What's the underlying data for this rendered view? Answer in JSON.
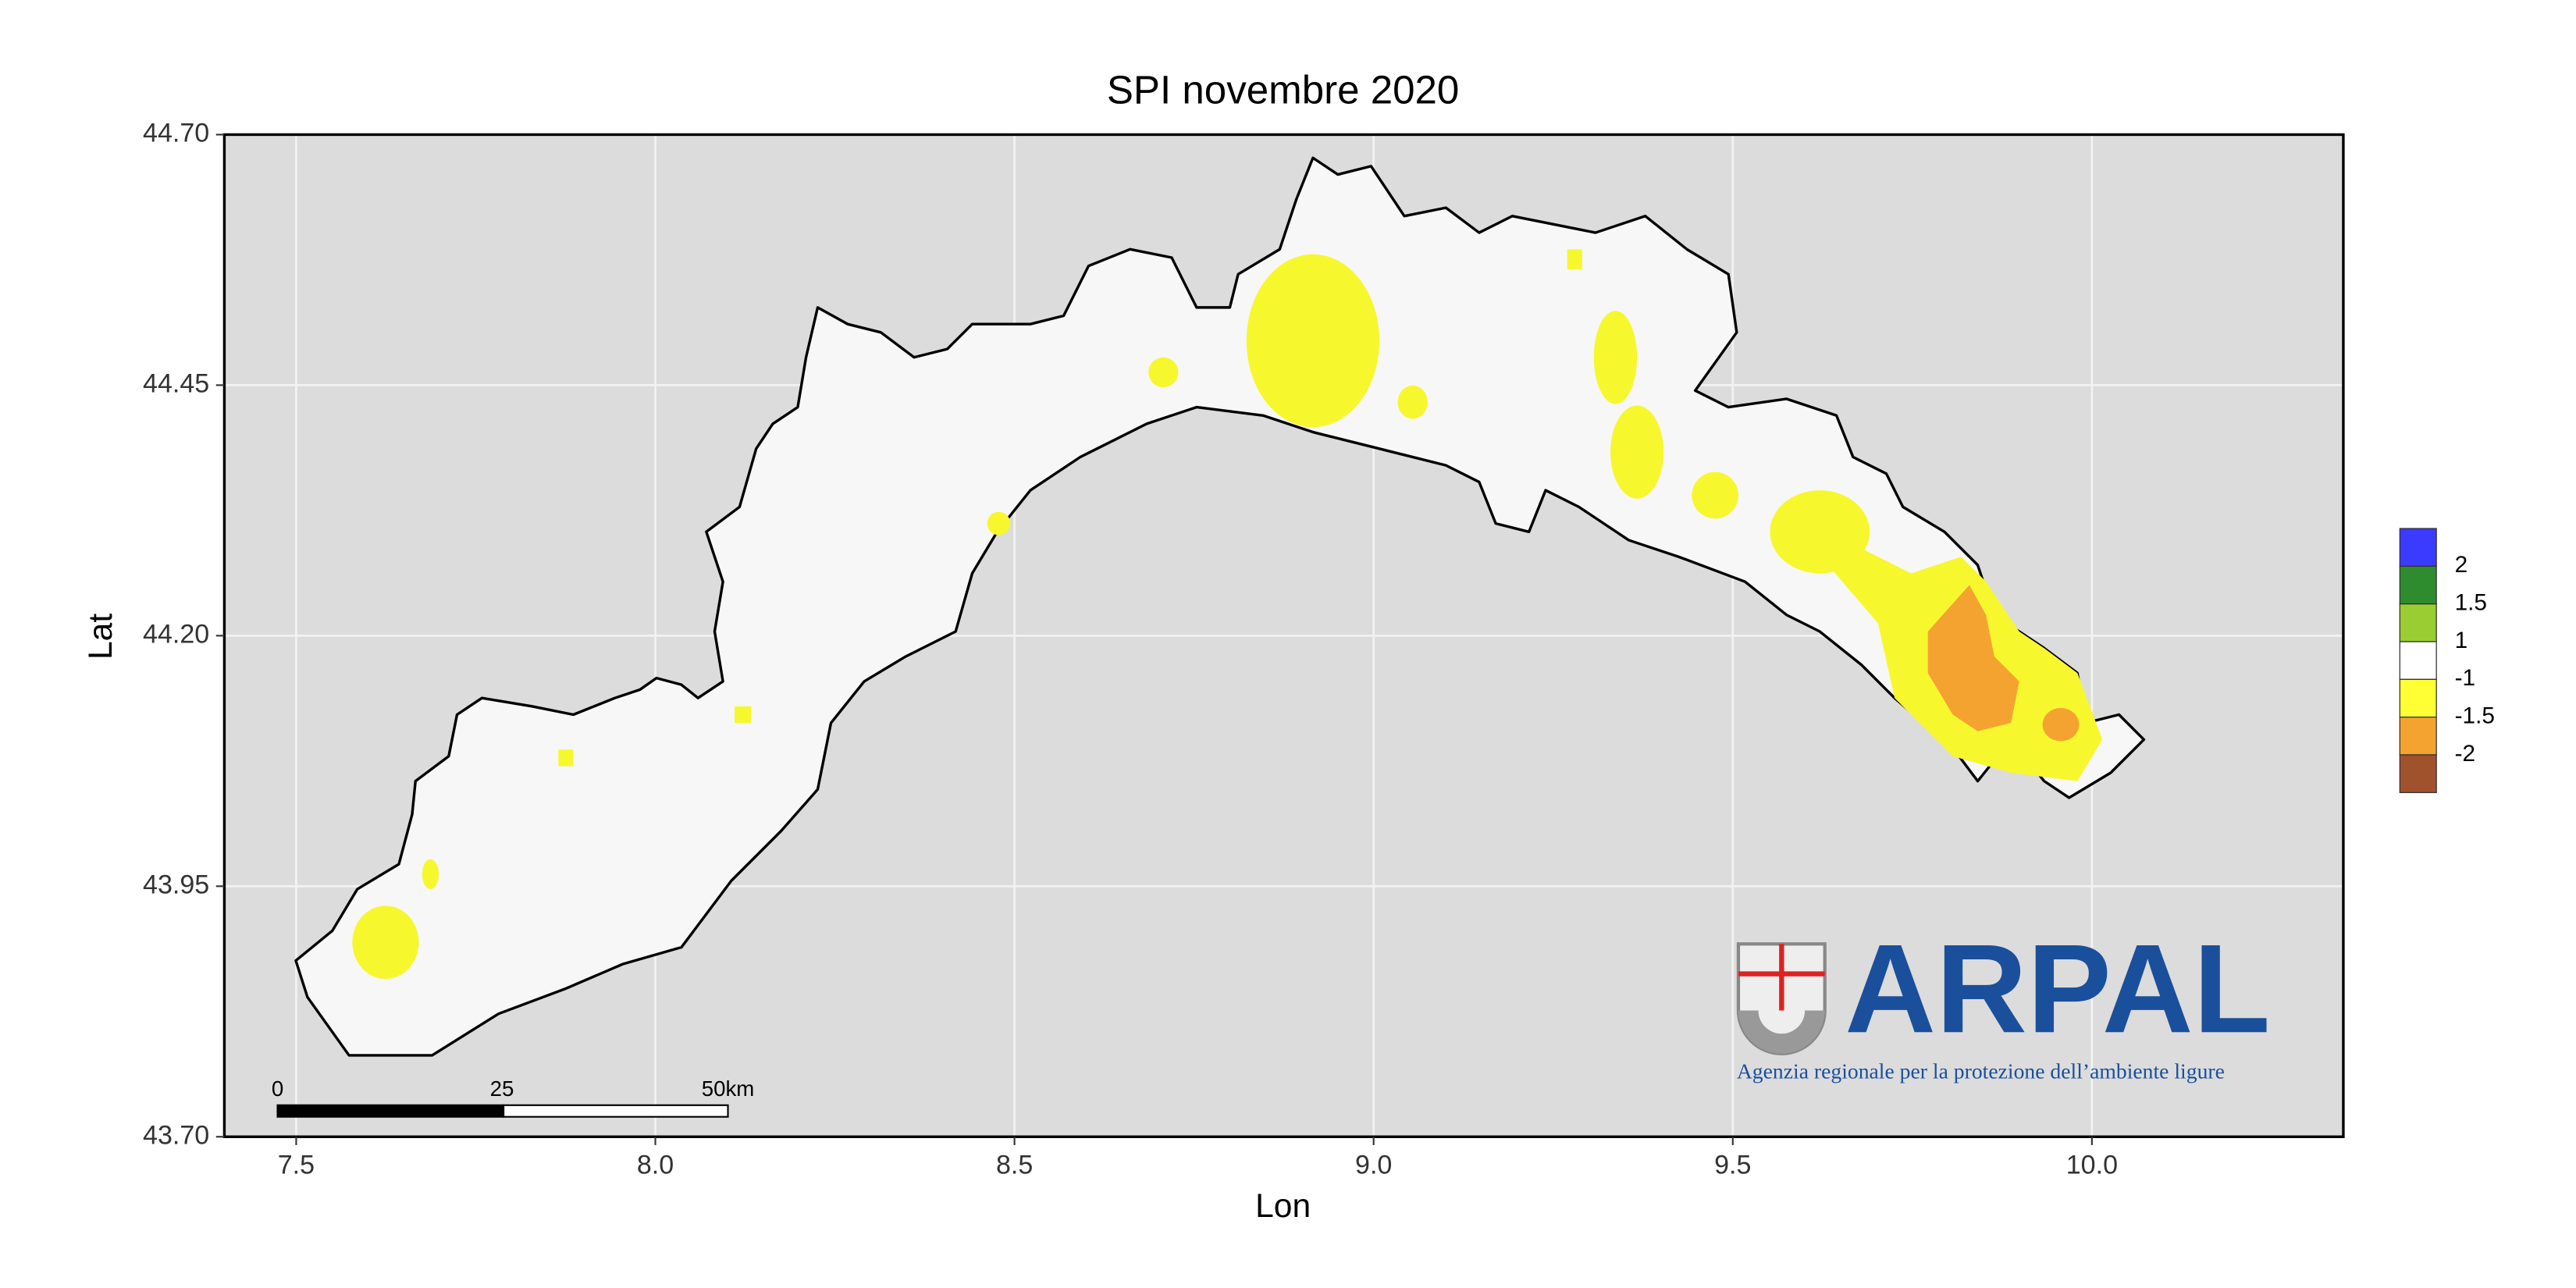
{
  "chart_data": {
    "type": "map",
    "title": "SPI novembre 2020",
    "x_label": "Lon",
    "y_label": "Lat",
    "xlim": [
      7.4,
      10.35
    ],
    "ylim": [
      43.7,
      44.7
    ],
    "xticks": [
      7.5,
      8.0,
      8.5,
      9.0,
      9.5,
      10.0
    ],
    "xtick_labels": [
      "7.5",
      "8.0",
      "8.5",
      "9.0",
      "9.5",
      "10.0"
    ],
    "yticks": [
      {
        "value": 43.7,
        "label": "43.70"
      },
      {
        "value": 43.95,
        "label": "43.95"
      },
      {
        "value": 44.2,
        "label": "44.20"
      },
      {
        "value": 44.45,
        "label": "44.45"
      },
      {
        "value": 44.7,
        "label": "44.70"
      }
    ],
    "grid": true,
    "legend": {
      "colors": [
        "#3b3bff",
        "#2e8b2e",
        "#9acd32",
        "#ffffff",
        "#ffff33",
        "#f5a330",
        "#a0522d"
      ],
      "breaks": [
        2,
        1.5,
        1,
        -1,
        -1.5,
        -2
      ]
    },
    "scale_bar": {
      "labels": [
        "0",
        "25",
        "50km"
      ]
    },
    "logo": {
      "name": "ARPAL",
      "tagline": "Agenzia regionale per la protezione dell’ambiente ligure"
    }
  }
}
